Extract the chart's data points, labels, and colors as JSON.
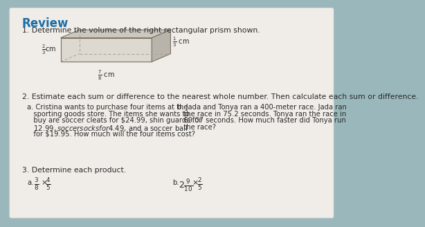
{
  "bg_color": "#9ab8bc",
  "paper_color": "#f0ede8",
  "title": "Review",
  "title_color": "#1a6fa8",
  "title_fontsize": 12,
  "text_color": "#2a2a2a",
  "body_fontsize": 7.8,
  "small_fontsize": 7.2,
  "q1_text": "1. Determine the volume of the right rectangular prism shown.",
  "q2_text": "2. Estimate each sum or difference to the nearest whole number. Then calculate each sum or difference.",
  "q3_text": "3. Determine each product.",
  "q2a_lines": [
    "a. Cristina wants to purchase four items at the",
    "   sporting goods store. The items she wants to",
    "   buy are soccer cleats for $24.99, shin guards for",
    "   $12.99, soccer socks for $4.49, and a soccer ball",
    "   for $19.95. How much will the four items cost?"
  ],
  "q2b_lines": [
    "b. Jada and Tonya ran a 400-meter race. Jada ran",
    "   the race in 75.2 seconds. Tonya ran the race in",
    "   69.07 seconds. How much faster did Tonya run",
    "   the race?"
  ],
  "prism_front_color": "#ddd8d0",
  "prism_top_color": "#ccc8c0",
  "prism_right_color": "#b8b4ac",
  "prism_edge_color": "#7a7060",
  "prism_dash_color": "#aaa090"
}
